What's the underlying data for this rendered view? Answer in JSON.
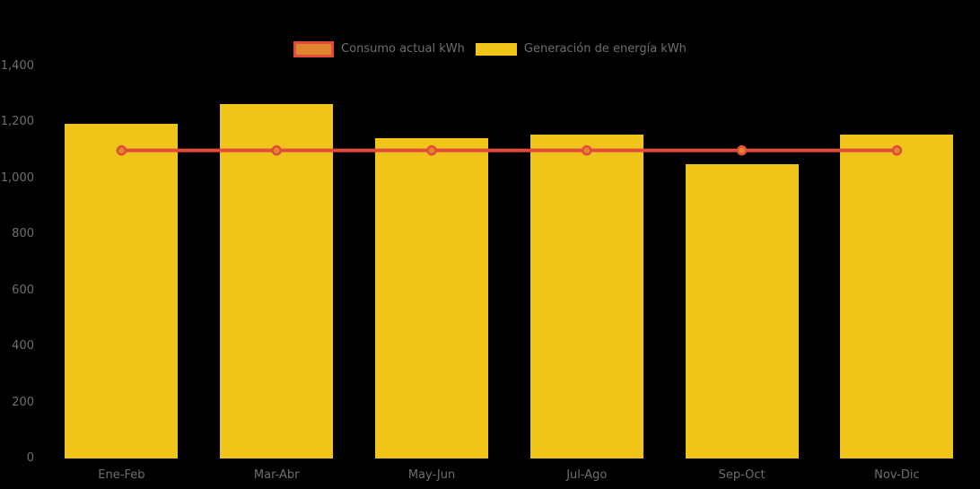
{
  "chart_data": {
    "type": "bar",
    "title": "",
    "xlabel": "",
    "ylabel": "",
    "categories": [
      "Ene-Feb",
      "Mar-Abr",
      "May-Jun",
      "Jul-Ago",
      "Sep-Oct",
      "Nov-Dic"
    ],
    "series": [
      {
        "name": "Consumo actual kWh",
        "type": "line",
        "color": "#e24b3c",
        "marker_fill": "#e0862d",
        "values": [
          1100,
          1100,
          1100,
          1100,
          1100,
          1100
        ]
      },
      {
        "name": "Generación de energía kWh",
        "type": "bar",
        "color": "#f0c419",
        "values": [
          1195,
          1265,
          1145,
          1155,
          1050,
          1155
        ]
      }
    ],
    "ylim": [
      0,
      1400
    ],
    "yticks": [
      0,
      200,
      400,
      600,
      800,
      1000,
      1200,
      1400
    ],
    "ytick_labels": [
      "0",
      "200",
      "400",
      "600",
      "800",
      "1,000",
      "1,200",
      "1,400"
    ],
    "grid": false,
    "legend_position": "top-center",
    "background_color": "#000000",
    "text_color": "#6e6e6e"
  }
}
